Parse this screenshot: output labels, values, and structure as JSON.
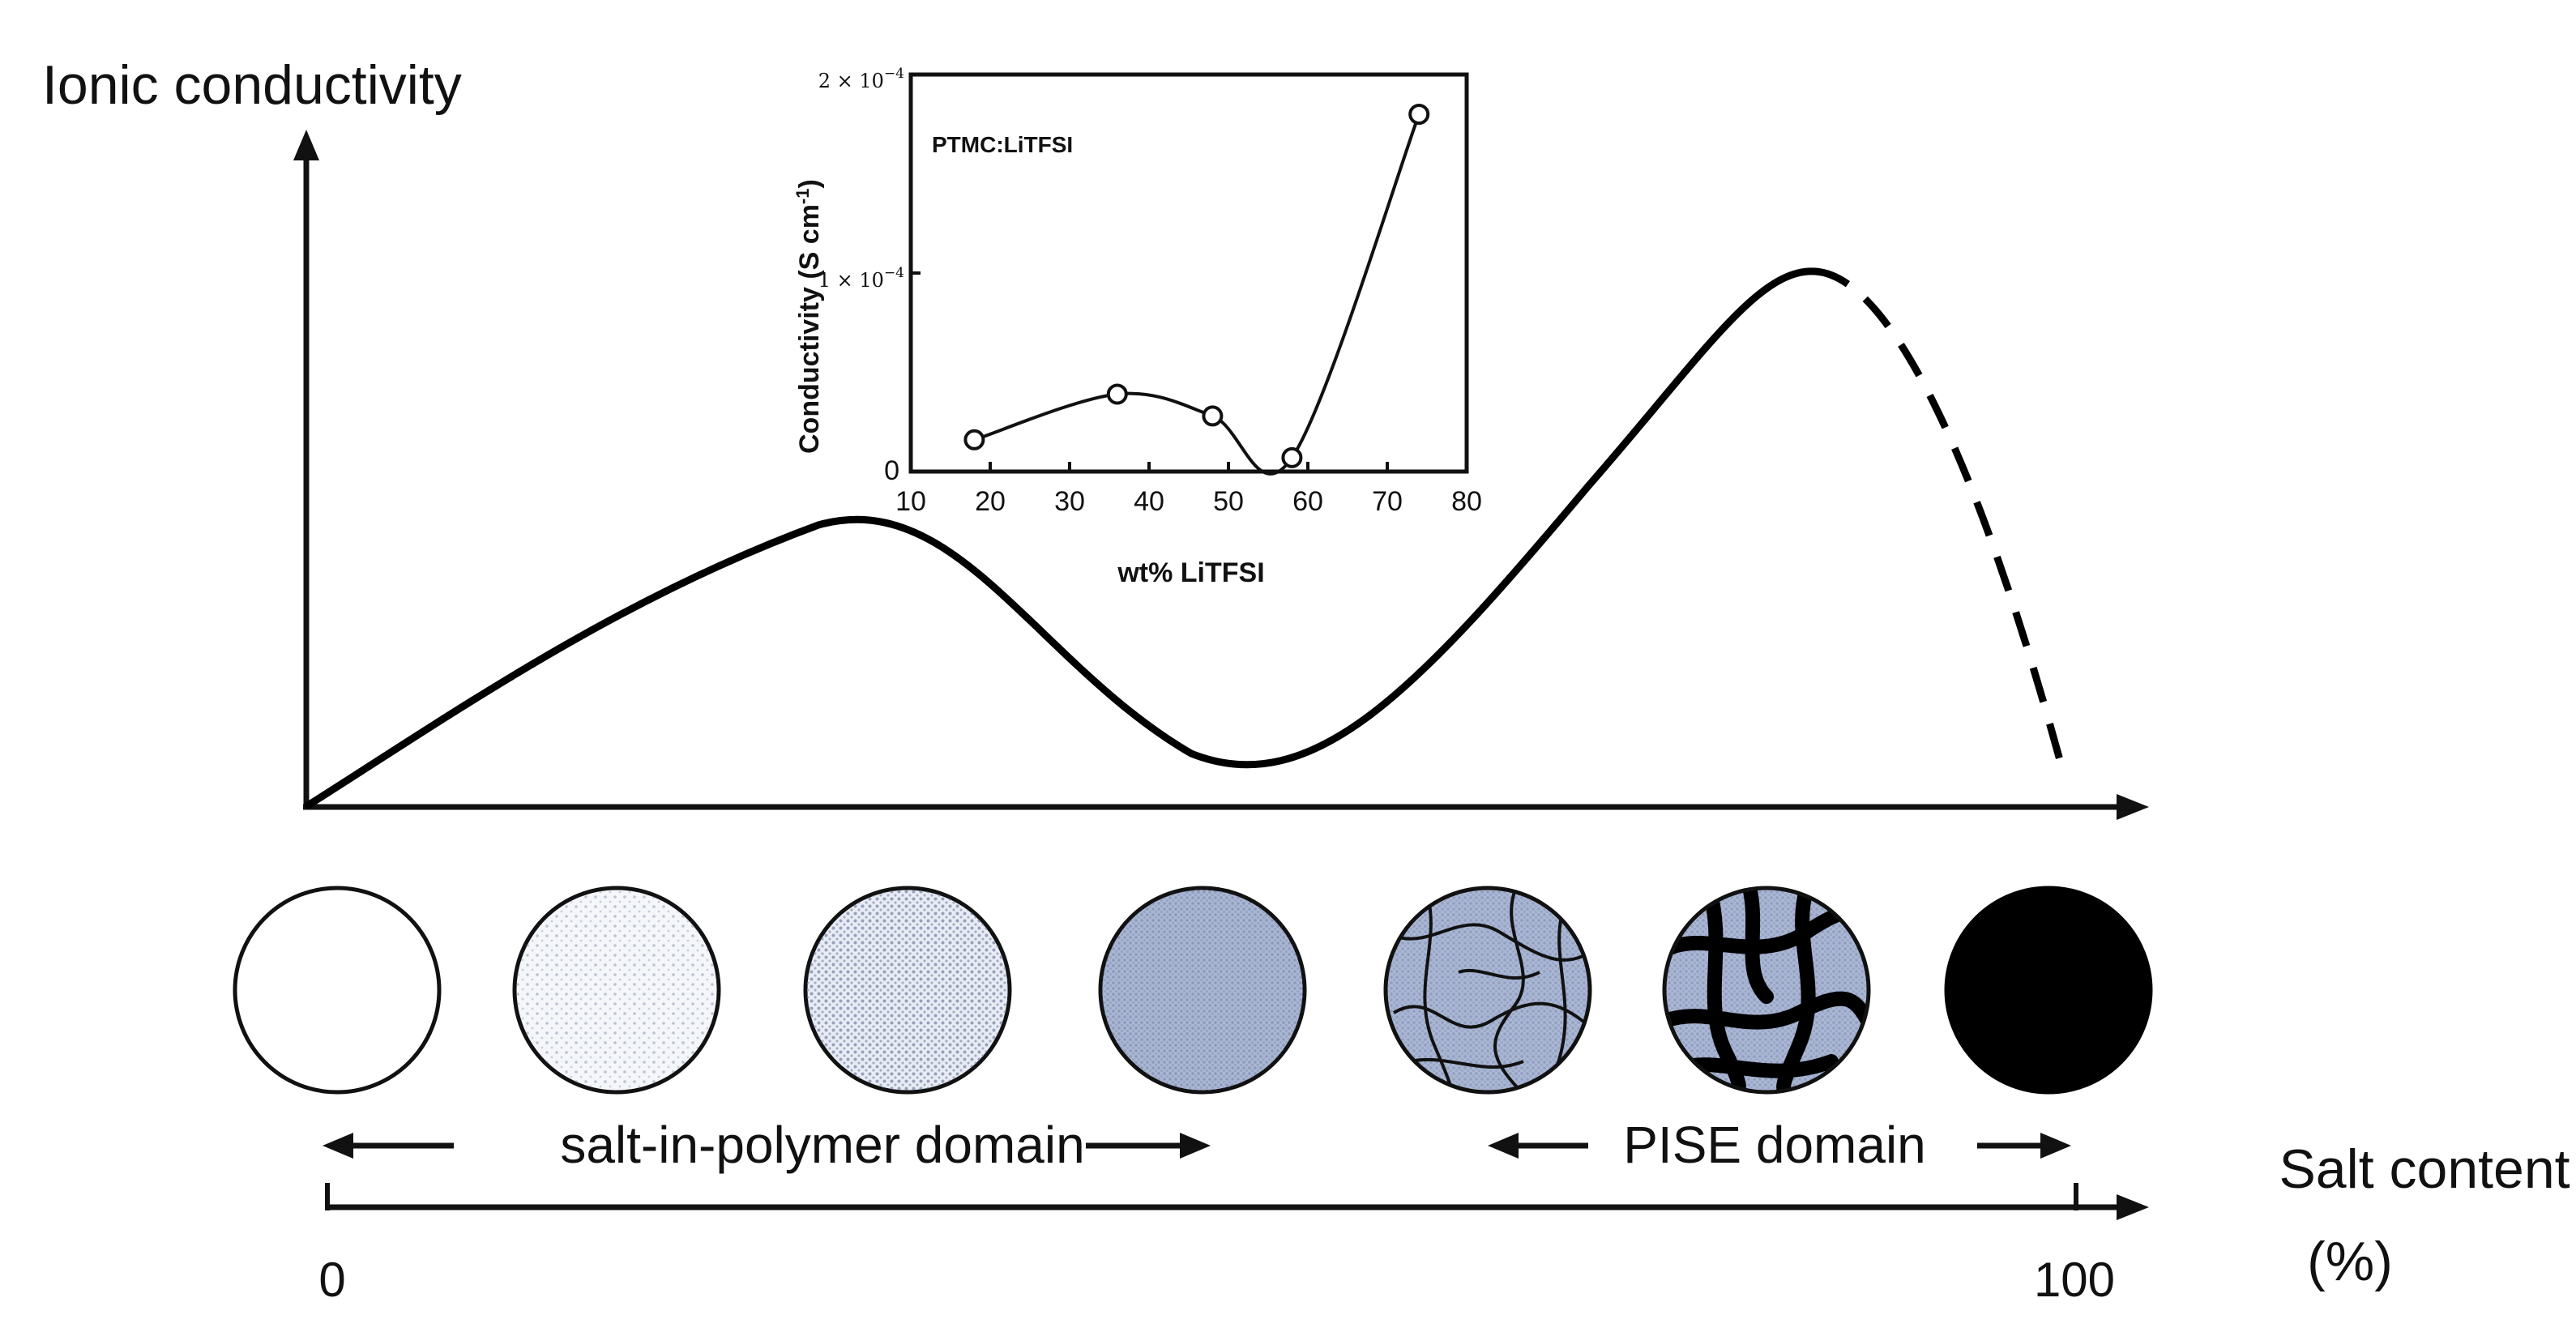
{
  "main": {
    "y_axis_label": "Ionic conductivity",
    "x_axis_label_line1": "Salt content",
    "x_axis_label_line2": "(%)",
    "x_tick_start": "0",
    "x_tick_end": "100"
  },
  "domains": {
    "salt_in_polymer": "salt-in-polymer domain",
    "pise": "PISE domain"
  },
  "circles": [
    {
      "name": "pure-polymer",
      "fill": "#ffffff",
      "pattern": "none"
    },
    {
      "name": "low-salt",
      "fill": "#f4f6fa",
      "pattern": "sparse-dots"
    },
    {
      "name": "medium-salt",
      "fill": "#e6eaf3",
      "pattern": "dots"
    },
    {
      "name": "high-salt",
      "fill": "#a9b6d4",
      "pattern": "dense-dots"
    },
    {
      "name": "percolating-thin",
      "fill": "#a9b6d4",
      "pattern": "thin-network"
    },
    {
      "name": "percolating-thick",
      "fill": "#a9b6d4",
      "pattern": "thick-network"
    },
    {
      "name": "pure-salt",
      "fill": "#000000",
      "pattern": "solid"
    }
  ],
  "inset": {
    "legend": "PTMC:LiTFSI",
    "ylabel": "Conductivity (S cm",
    "ylabel_sup": "-1",
    "ylabel_end": ")",
    "xlabel": "wt% LiTFSI",
    "y_tick_0": "0",
    "y_tick_1_base": "1 × 10",
    "y_tick_1_exp": "−4",
    "y_tick_2_base": "2 × 10",
    "y_tick_2_exp": "−4"
  },
  "chart_data": {
    "type": "line",
    "title": "",
    "legend": "PTMC:LiTFSI",
    "xlabel": "wt% LiTFSI",
    "ylabel": "Conductivity (S cm-1)",
    "xlim": [
      10,
      80
    ],
    "ylim": [
      0,
      0.0002
    ],
    "x_ticks": [
      10,
      20,
      30,
      40,
      50,
      60,
      70,
      80
    ],
    "y_ticks": [
      0,
      0.0001,
      0.0002
    ],
    "series": [
      {
        "x": [
          18,
          36,
          48,
          58,
          74
        ],
        "y": [
          1.6e-05,
          3.9e-05,
          2.8e-05,
          7e-06,
          0.00018
        ]
      }
    ]
  }
}
